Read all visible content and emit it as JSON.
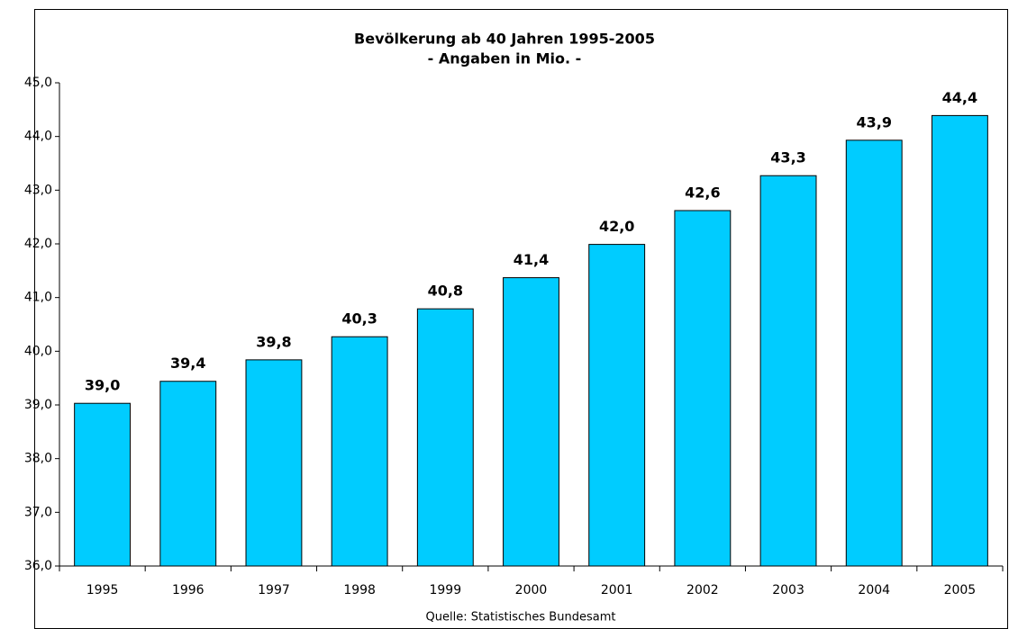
{
  "chart_data": {
    "type": "bar",
    "title": "Bevölkerung ab 40 Jahren 1995-2005",
    "subtitle": "- Angaben in Mio. -",
    "source": "Quelle: Statistisches Bundesamt",
    "categories": [
      "1995",
      "1996",
      "1997",
      "1998",
      "1999",
      "2000",
      "2001",
      "2002",
      "2003",
      "2004",
      "2005"
    ],
    "values": [
      39.03,
      39.44,
      39.84,
      40.27,
      40.79,
      41.37,
      41.99,
      42.62,
      43.27,
      43.93,
      44.39
    ],
    "value_labels": [
      "39,0",
      "39,4",
      "39,8",
      "40,3",
      "40,8",
      "41,4",
      "42,0",
      "42,6",
      "43,3",
      "43,9",
      "44,4"
    ],
    "color": "#00ccff",
    "ylim": [
      36,
      45
    ],
    "yticks": [
      {
        "value": 36,
        "label": "36,0"
      },
      {
        "value": 37,
        "label": "37,0"
      },
      {
        "value": 38,
        "label": "38,0"
      },
      {
        "value": 39,
        "label": "39,0"
      },
      {
        "value": 40,
        "label": "40,0"
      },
      {
        "value": 41,
        "label": "41,0"
      },
      {
        "value": 42,
        "label": "42,0"
      },
      {
        "value": 43,
        "label": "43,0"
      },
      {
        "value": 44,
        "label": "44,0"
      },
      {
        "value": 45,
        "label": "45,0"
      }
    ],
    "grid": false
  }
}
